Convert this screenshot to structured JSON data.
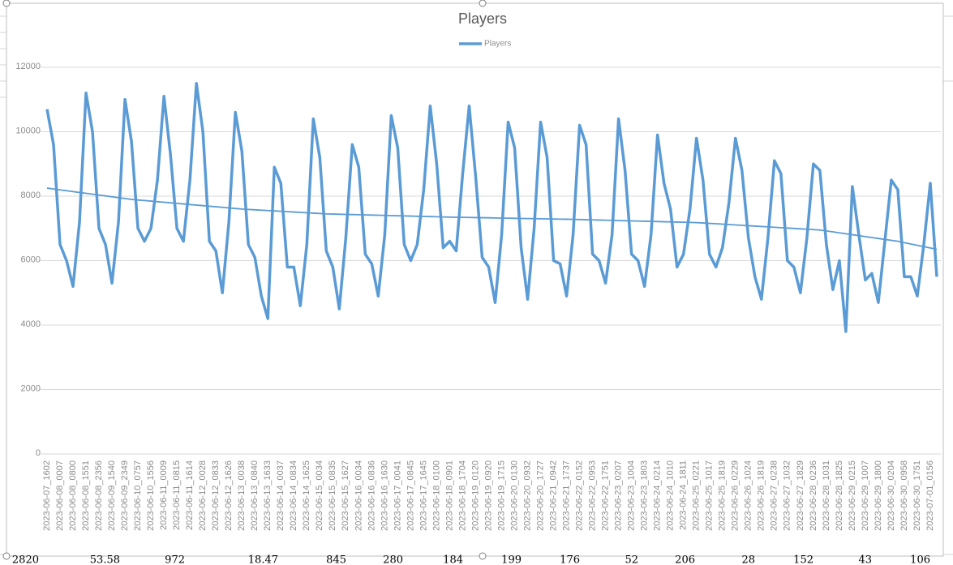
{
  "chart_data": {
    "type": "line",
    "title": "Players",
    "categories": [
      "2023-06-07_1602",
      null,
      "2023-06-08_0007",
      null,
      "2023-06-08_0800",
      null,
      "2023-06-08_1551",
      null,
      "2023-06-08_2356",
      null,
      "2023-06-09_1540",
      null,
      "2023-06-09_2349",
      null,
      "2023-06-10_0757",
      null,
      "2023-06-10_1556",
      null,
      "2023-06-11_0009",
      null,
      "2023-06-11_0815",
      null,
      "2023-06-11_1614",
      null,
      "2023-06-12_0028",
      null,
      "2023-06-12_0833",
      null,
      "2023-06-12_1626",
      null,
      "2023-06-13_0038",
      null,
      "2023-06-13_0840",
      null,
      "2023-06-13_1633",
      null,
      "2023-06-14_0037",
      null,
      "2023-06-14_0834",
      null,
      "2023-06-14_1625",
      null,
      "2023-06-15_0034",
      null,
      "2023-06-15_0835",
      null,
      "2023-06-15_1627",
      null,
      "2023-06-16_0034",
      null,
      "2023-06-16_0836",
      null,
      "2023-06-16_1630",
      null,
      "2023-06-17_0041",
      null,
      "2023-06-17_0845",
      null,
      "2023-06-17_1645",
      null,
      "2023-06-18_0100",
      null,
      "2023-06-18_0901",
      null,
      "2023-06-18_1704",
      null,
      "2023-06-19_0120",
      null,
      "2023-06-19_0920",
      null,
      "2023-06-19_1715",
      null,
      "2023-06-20_0130",
      null,
      "2023-06-20_0932",
      null,
      "2023-06-20_1727",
      null,
      "2023-06-21_0942",
      null,
      "2023-06-21_1737",
      null,
      "2023-06-22_0152",
      null,
      "2023-06-22_0953",
      null,
      "2023-06-22_1751",
      null,
      "2023-06-23_0207",
      null,
      "2023-06-23_1004",
      null,
      "2023-06-23_1803",
      null,
      "2023-06-24_0214",
      null,
      "2023-06-24_1010",
      null,
      "2023-06-24_1811",
      null,
      "2023-06-25_0221",
      null,
      "2023-06-25_1017",
      null,
      "2023-06-25_1819",
      null,
      "2023-06-26_0229",
      null,
      "2023-06-26_1024",
      null,
      "2023-06-26_1819",
      null,
      "2023-06-27_0238",
      null,
      "2023-06-27_1032",
      null,
      "2023-06-27_1829",
      null,
      "2023-06-28_0236",
      null,
      "2023-06-28_1031",
      null,
      "2023-06-28_1825",
      null,
      "2023-06-29_0215",
      null,
      "2023-06-29_1007",
      null,
      "2023-06-29_1800",
      null,
      "2023-06-30_0204",
      null,
      "2023-06-30_0958",
      null,
      "2023-06-30_1751",
      null,
      "2023-07-01_0156",
      null
    ],
    "series": [
      {
        "name": "Players",
        "color": "#5b9bd5",
        "values": [
          10700,
          9600,
          6500,
          6000,
          5200,
          7200,
          11200,
          10000,
          7000,
          6500,
          5300,
          7200,
          11000,
          9700,
          7000,
          6600,
          7000,
          8500,
          11100,
          9300,
          7000,
          6600,
          8500,
          11500,
          10000,
          6600,
          6300,
          5000,
          7200,
          10600,
          9400,
          6500,
          6100,
          4900,
          4200,
          8900,
          8400,
          5800,
          5800,
          4600,
          6500,
          10400,
          9200,
          6300,
          5800,
          4500,
          6700,
          9600,
          8900,
          6200,
          5900,
          4900,
          6800,
          10500,
          9500,
          6500,
          6000,
          6500,
          8200,
          10800,
          9000,
          6400,
          6600,
          6300,
          8700,
          10800,
          8600,
          6100,
          5800,
          4700,
          6800,
          10300,
          9500,
          6400,
          4800,
          7000,
          10300,
          9200,
          6000,
          5900,
          4900,
          6800,
          10200,
          9600,
          6200,
          6000,
          5300,
          6800,
          10400,
          8800,
          6200,
          6000,
          5200,
          6800,
          9900,
          8400,
          7600,
          5800,
          6200,
          7600,
          9800,
          8500,
          6200,
          5800,
          6400,
          7800,
          9800,
          8800,
          6700,
          5500,
          4800,
          6700,
          9100,
          8700,
          6000,
          5800,
          5000,
          6700,
          9000,
          8800,
          6500,
          5100,
          6000,
          3800,
          8300,
          6800,
          5400,
          5600,
          4700,
          6600,
          8500,
          8200,
          5500,
          5500,
          4900,
          6500,
          8400,
          5500
        ]
      }
    ],
    "trendline": {
      "color": "#5b9bd5",
      "values": [
        8250,
        8223,
        8196,
        8169,
        8142,
        8115,
        8088,
        8062,
        8035,
        8008,
        7981,
        7954,
        7927,
        7900,
        7882,
        7865,
        7847,
        7829,
        7812,
        7794,
        7776,
        7759,
        7741,
        7724,
        7706,
        7688,
        7671,
        7653,
        7635,
        7618,
        7600,
        7588,
        7577,
        7565,
        7554,
        7542,
        7531,
        7519,
        7508,
        7496,
        7485,
        7473,
        7462,
        7450,
        7445,
        7439,
        7434,
        7429,
        7424,
        7418,
        7413,
        7408,
        7403,
        7397,
        7392,
        7387,
        7382,
        7376,
        7371,
        7366,
        7361,
        7355,
        7350,
        7346,
        7343,
        7339,
        7335,
        7332,
        7328,
        7324,
        7321,
        7317,
        7313,
        7309,
        7306,
        7302,
        7298,
        7295,
        7291,
        7287,
        7284,
        7280,
        7275,
        7269,
        7264,
        7259,
        7254,
        7248,
        7243,
        7238,
        7233,
        7227,
        7222,
        7217,
        7212,
        7206,
        7201,
        7196,
        7191,
        7185,
        7180,
        7168,
        7156,
        7144,
        7132,
        7119,
        7107,
        7095,
        7083,
        7071,
        7059,
        7047,
        7035,
        7023,
        7011,
        6998,
        6986,
        6974,
        6962,
        6950,
        6921,
        6892,
        6862,
        6833,
        6804,
        6775,
        6746,
        6717,
        6687,
        6658,
        6629,
        6600,
        6558,
        6517,
        6475,
        6433,
        6392,
        6350
      ]
    },
    "ylim": [
      0,
      12000
    ],
    "yticks": [
      0,
      2000,
      4000,
      6000,
      8000,
      10000,
      12000
    ],
    "grid": true,
    "legend": "top"
  },
  "sheet_cells": [
    "2820",
    "53.58",
    "972",
    "18.47",
    "845",
    "280",
    "184",
    "199",
    "176",
    "52",
    "206",
    "28",
    "152",
    "43",
    "106"
  ]
}
